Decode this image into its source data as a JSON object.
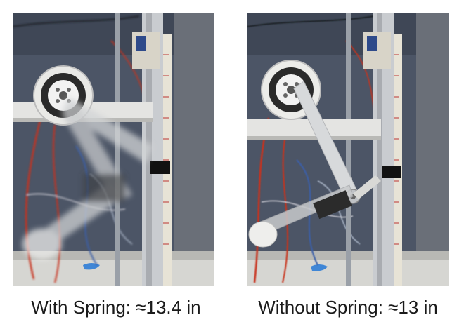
{
  "panels": [
    {
      "caption": "With Spring: ≈13.4 in",
      "motion_blur": true
    },
    {
      "caption": "Without Spring: ≈13 in",
      "motion_blur": false
    }
  ],
  "colors": {
    "wall": "#4c5566",
    "frame": "#c9ccd0",
    "cable_red": "#c8321e",
    "cable_blue": "#3a5ea8",
    "tape": "#3f86d6"
  }
}
